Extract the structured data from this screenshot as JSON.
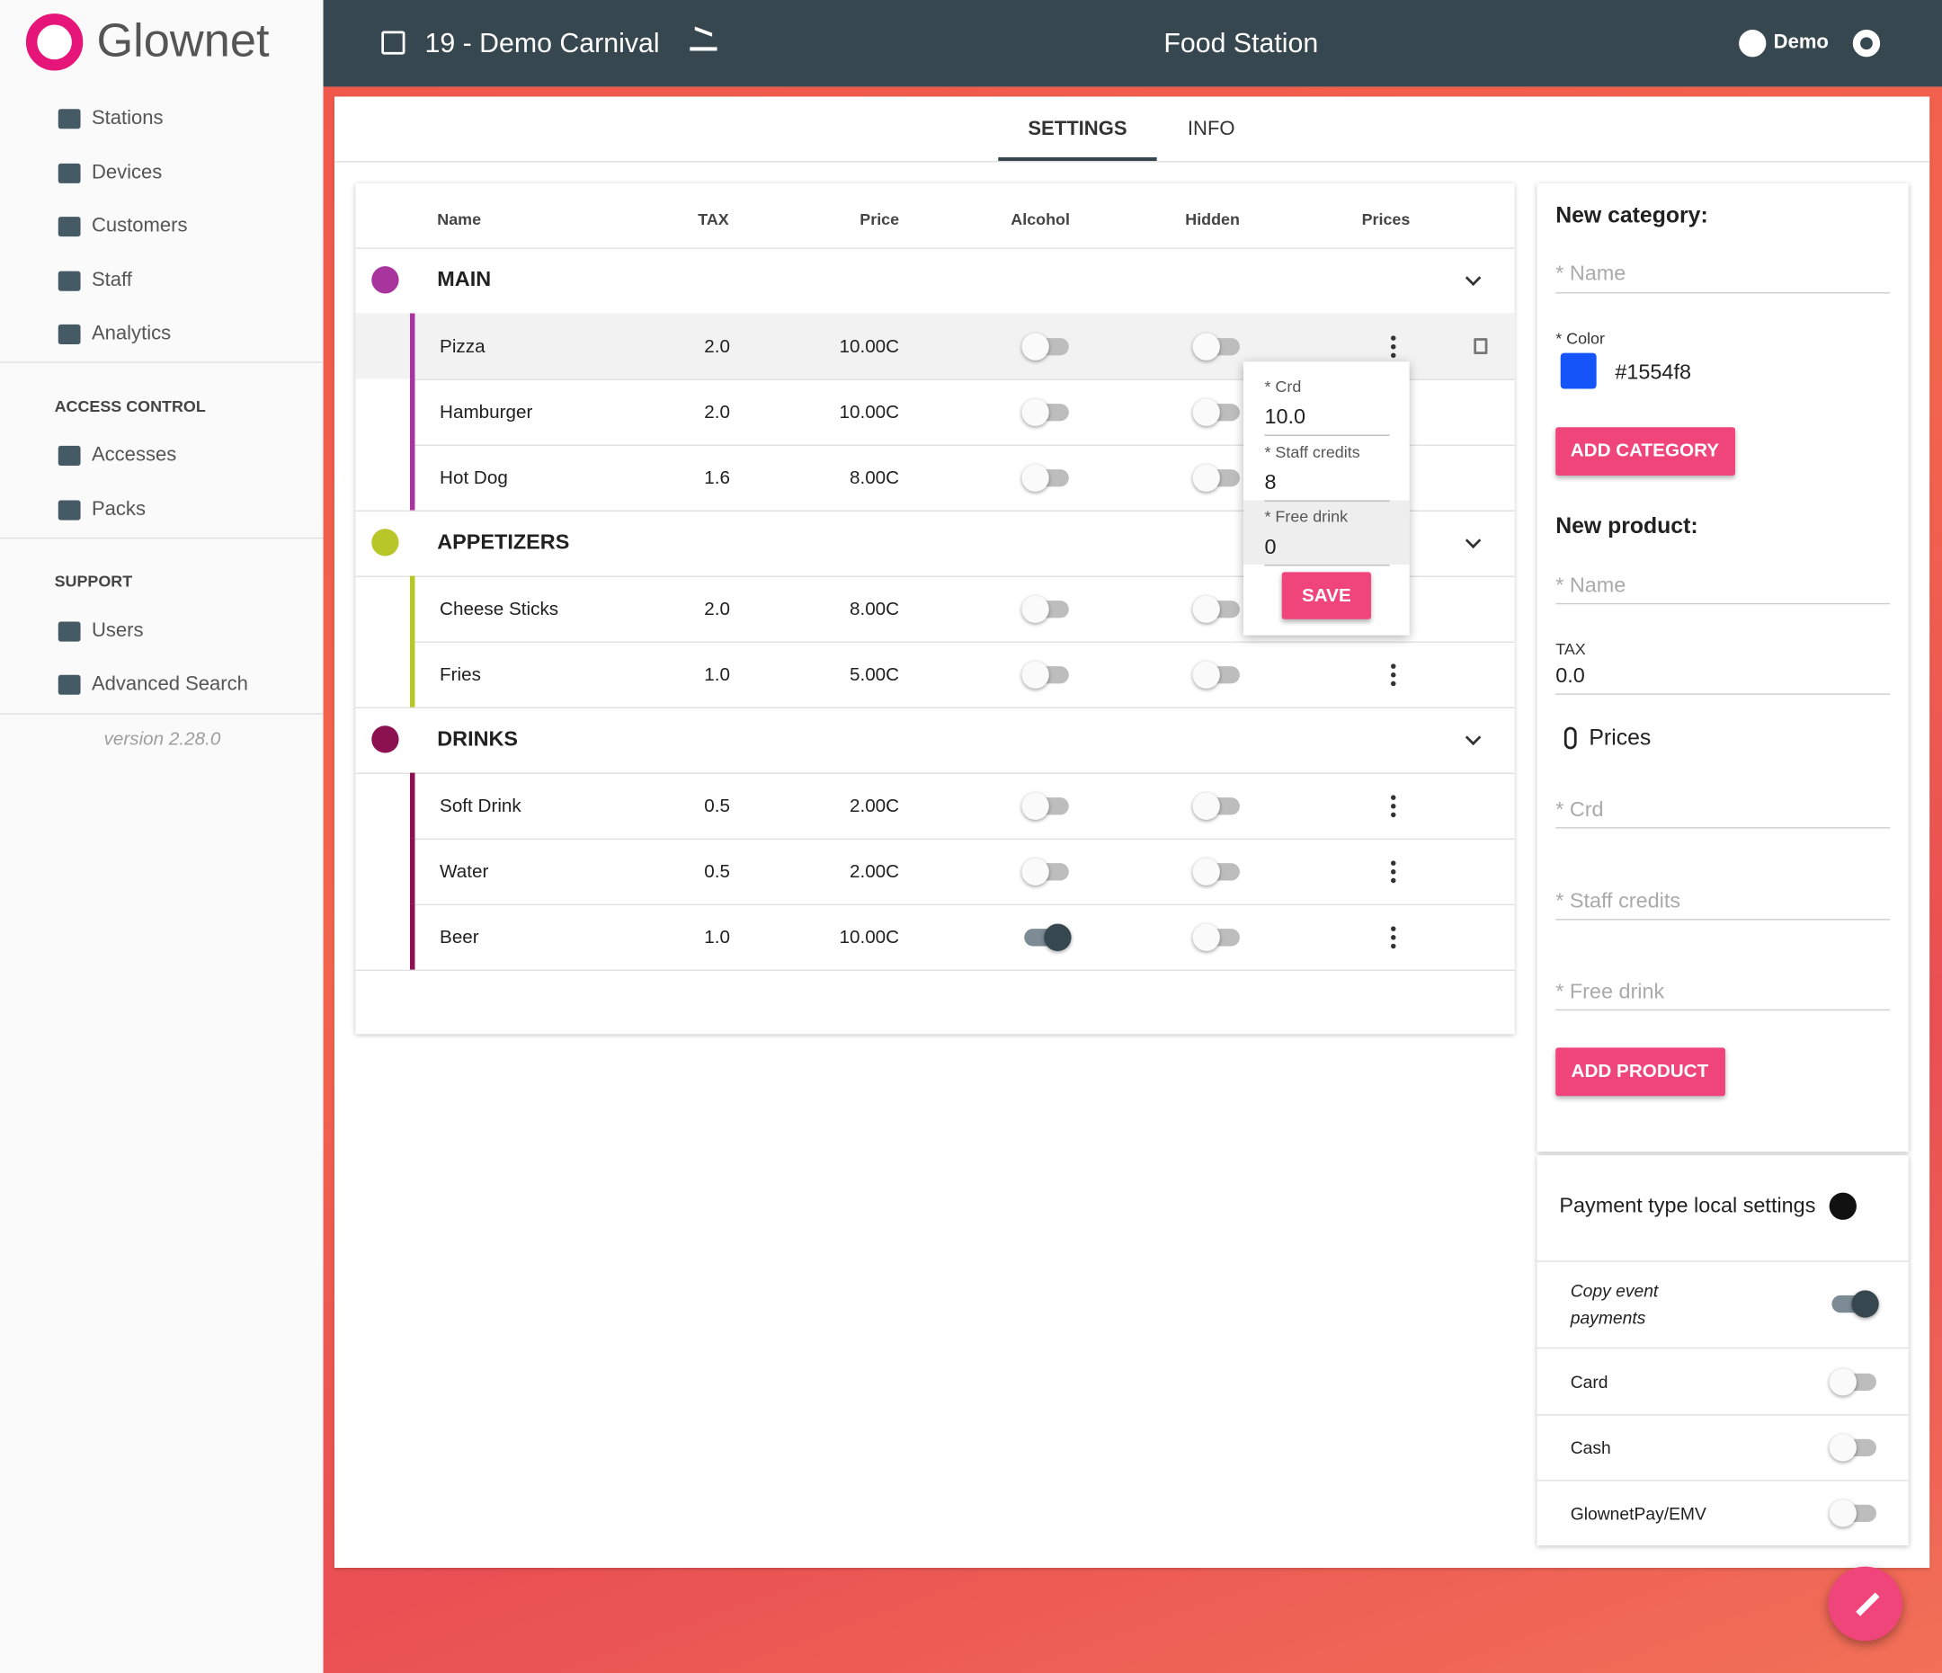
{
  "brand": "Glownet",
  "header": {
    "event": "19 - Demo Carnival",
    "title": "Food Station",
    "user": "Demo"
  },
  "nav": {
    "main": [
      "Stations",
      "Devices",
      "Customers",
      "Staff",
      "Analytics"
    ],
    "access_control": {
      "title": "ACCESS CONTROL",
      "items": [
        "Accesses",
        "Packs"
      ]
    },
    "support": {
      "title": "SUPPORT",
      "items": [
        "Users",
        "Advanced Search"
      ]
    },
    "version": "version 2.28.0"
  },
  "tabs": [
    "SETTINGS",
    "INFO"
  ],
  "table": {
    "columns": [
      "Name",
      "TAX",
      "Price",
      "Alcohol",
      "Hidden",
      "Prices"
    ],
    "categories": [
      {
        "name": "MAIN",
        "color": "#a8359e",
        "products": [
          {
            "name": "Pizza",
            "tax": "2.0",
            "price": "10.00C",
            "alcohol": false,
            "hidden": false
          },
          {
            "name": "Hamburger",
            "tax": "2.0",
            "price": "10.00C",
            "alcohol": false,
            "hidden": false
          },
          {
            "name": "Hot Dog",
            "tax": "1.6",
            "price": "8.00C",
            "alcohol": false,
            "hidden": false
          }
        ]
      },
      {
        "name": "APPETIZERS",
        "color": "#b9c62a",
        "products": [
          {
            "name": "Cheese Sticks",
            "tax": "2.0",
            "price": "8.00C",
            "alcohol": false,
            "hidden": false
          },
          {
            "name": "Fries",
            "tax": "1.0",
            "price": "5.00C",
            "alcohol": false,
            "hidden": false
          }
        ]
      },
      {
        "name": "DRINKS",
        "color": "#8b1150",
        "products": [
          {
            "name": "Soft Drink",
            "tax": "0.5",
            "price": "2.00C",
            "alcohol": false,
            "hidden": false
          },
          {
            "name": "Water",
            "tax": "0.5",
            "price": "2.00C",
            "alcohol": false,
            "hidden": false
          },
          {
            "name": "Beer",
            "tax": "1.0",
            "price": "10.00C",
            "alcohol": true,
            "hidden": false
          }
        ]
      }
    ]
  },
  "popup": {
    "fields": [
      {
        "label": "* Crd",
        "value": "10.0"
      },
      {
        "label": "* Staff credits",
        "value": "8"
      },
      {
        "label": "* Free drink",
        "value": "0"
      }
    ],
    "button": "SAVE"
  },
  "new_category": {
    "title": "New category:",
    "name": "* Name",
    "color_label": "* Color",
    "color": "#1554f8",
    "button": "ADD CATEGORY"
  },
  "new_product": {
    "title": "New product:",
    "name": "* Name",
    "tax_label": "TAX",
    "tax": "0.0",
    "prices": "Prices",
    "fields": [
      "* Crd",
      "* Staff credits",
      "* Free drink"
    ],
    "button": "ADD PRODUCT"
  },
  "payment": {
    "title": "Payment type local settings",
    "items": [
      {
        "label": "Copy event payments",
        "on": true
      },
      {
        "label": "Card",
        "on": false
      },
      {
        "label": "Cash",
        "on": false
      },
      {
        "label": "GlownetPay/EMV",
        "on": false
      }
    ]
  }
}
